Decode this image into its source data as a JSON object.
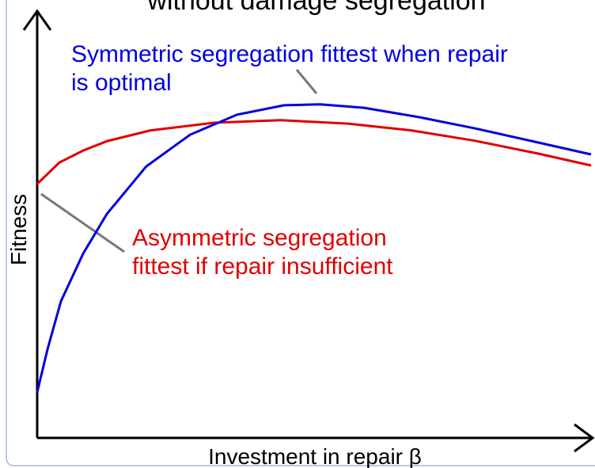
{
  "chart_data": {
    "type": "line",
    "title": "without damage segregation",
    "x_label": "Investment in repair β",
    "y_label": "Fitness",
    "xlim": [
      0,
      100
    ],
    "ylim": [
      0,
      100
    ],
    "series": [
      {
        "name": "Asymmetric segregation",
        "color": "#e00000",
        "x": [
          0,
          4,
          8.3,
          12.6,
          20.4,
          31.9,
          44,
          56.1,
          67.6,
          79,
          90.4,
          100
        ],
        "values": [
          59.4,
          64.4,
          67.2,
          69.4,
          71.9,
          73.7,
          74.3,
          73.5,
          71.9,
          69.5,
          66.5,
          63.7
        ]
      },
      {
        "name": "Symmetric segregation",
        "color": "#0000e0",
        "x": [
          0,
          1.9,
          4.3,
          8.3,
          12.6,
          19.7,
          27.6,
          36.1,
          44.6,
          51.1,
          59,
          69,
          79,
          90.4,
          100
        ],
        "values": [
          10.7,
          20.9,
          32,
          43.1,
          52.4,
          63.5,
          70.9,
          75.6,
          77.8,
          78,
          77.2,
          75,
          72.4,
          69.1,
          66.3
        ]
      }
    ],
    "annotations": [
      {
        "lines": [
          "Symmetric segregation fittest when repair",
          "is optimal"
        ],
        "color": "#0000e0"
      },
      {
        "lines": [
          "Asymmetric segregation",
          "fittest if repair insufficient"
        ],
        "color": "#e00000"
      }
    ]
  }
}
